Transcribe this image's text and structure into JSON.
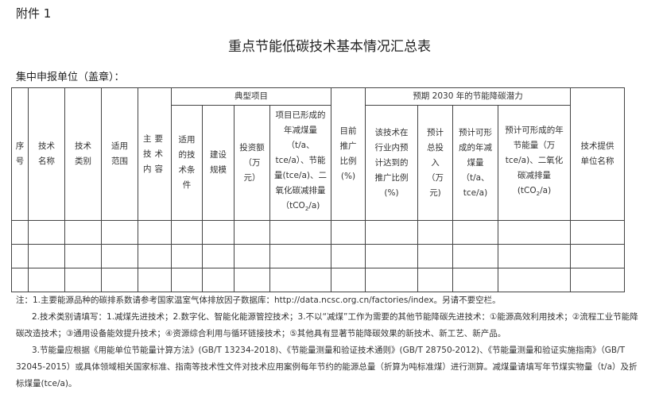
{
  "attachment": "附件 1",
  "title": "重点节能低碳技术基本情况汇总表",
  "unit_label": "集中申报单位（盖章）：",
  "table": {
    "headers": {
      "seq": "序号",
      "name": "技术名称",
      "category": "技术类别",
      "scope": "适用范围",
      "content": "主要技术内容",
      "group_typical": "典型项目",
      "conditions": "适用的技术条件",
      "scale": "建设规模",
      "investment": "投资额（万元）",
      "project_savings": "项目已形成的年减煤量（t/a、tce/a）、节能量(tce/a)、二氧化碳减排量（tCO",
      "project_savings_tail": "/a)",
      "current_ratio": "目前推广比例(%)",
      "group_2030": "预期 2030 年的节能降碳潜力",
      "expected_ratio": "该技术在行业内预计达到的推广比例(%)",
      "total_investment": "预计总投入（万元)",
      "coal_reduction": "预计可形成的年减煤量（t/a、tce/a)",
      "energy_savings": "预计可形成的年节能量（万tce/a)、二氧化碳减排量(tCO",
      "energy_savings_tail": "/a)",
      "provider": "技术提供单位名称",
      "sub2": "2"
    },
    "rows": [
      [
        "",
        "",
        "",
        "",
        "",
        "",
        "",
        "",
        "",
        "",
        "",
        "",
        "",
        "",
        ""
      ],
      [
        "",
        "",
        "",
        "",
        "",
        "",
        "",
        "",
        "",
        "",
        "",
        "",
        "",
        "",
        ""
      ],
      [
        "",
        "",
        "",
        "",
        "",
        "",
        "",
        "",
        "",
        "",
        "",
        "",
        "",
        "",
        ""
      ]
    ]
  },
  "notes": [
    "注：1.主要能源品种的碳排系数请参考国家温室气体排放因子数据库：http://data.ncsc.org.cn/factories/index。另请不要空栏。",
    "2.技术类别请填写：1.减煤先进技术；2.数字化、智能化能源管控技术；3.不以“减煤”工作为需要的其他节能降碳先进技术：①能源高效利用技术；②流程工业节能降碳改造技术；③通用设备能效提升技术；④资源综合利用与循环链接技术；⑤其他具有显著节能降碳效果的新技术、新工艺、新产品。",
    "3.节能量应根据《用能单位节能量计算方法》(GB/T 13234-2018)、《节能量测量和验证技术通则》(GB/T 28750-2012)、《节能量测量和验证实施指南》（GB/T 32045-2015）或具体领域相关国家标准、指南等技术性文件对技术应用案例每年节约的能源总量（折算为吨标准煤）进行测算。减煤量请填写年节煤实物量（t/a）及折标煤量(tce/a)。"
  ]
}
